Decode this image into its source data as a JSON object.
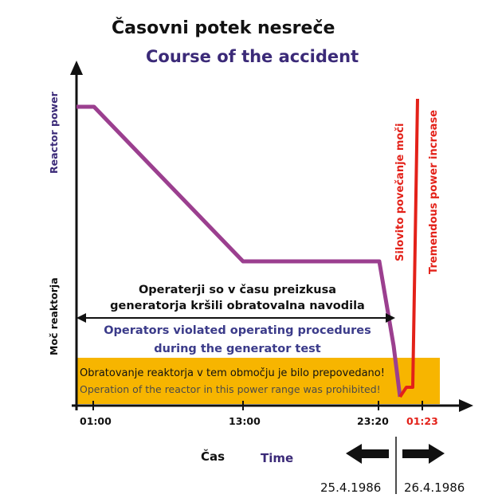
{
  "titles": {
    "slovene": "Časovni potek nesreče",
    "english": "Course of the accident"
  },
  "axis": {
    "y_label_en": "Reactor power",
    "y_label_sl": "Moč reaktorja",
    "x_label_sl": "Čas",
    "x_label_en": "Time",
    "ticks": [
      "01:00",
      "13:00",
      "23:20",
      "01:23"
    ]
  },
  "annotations": {
    "operators_sl_line1": "Operaterji so v času preizkusa",
    "operators_sl_line2": "generatorja kršili obratovalna navodila",
    "operators_en_line1": "Operators violated operating procedures",
    "operators_en_line2": "during the generator test",
    "prohibited_sl": "Obratovanje reaktorja v tem območju je bilo prepovedano!",
    "prohibited_en": "Operation of the reactor in this power range was prohibited!",
    "surge_sl": "Silovito povečanje moči",
    "surge_en": "Tremendous power increase"
  },
  "dates": {
    "left": "25.4.1986",
    "right": "26.4.1986"
  },
  "colors": {
    "power_line": "#9b3f8f",
    "surge_line": "#e32119",
    "prohibited_zone": "#f7b500",
    "title_en": "#3b2a78"
  }
}
